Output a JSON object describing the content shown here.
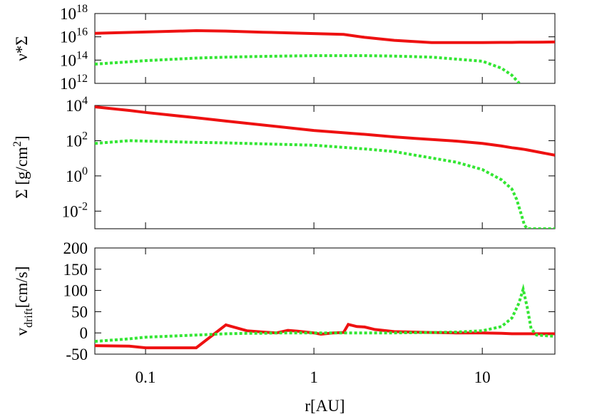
{
  "chart_data": [
    {
      "type": "line",
      "ylabel": [
        "ν*Σ"
      ],
      "ylabel_scripts": [
        "normal"
      ],
      "xlog": true,
      "ylog": true,
      "show_xtick_labels": false,
      "xlim": [
        0.05,
        27
      ],
      "xticks": [
        0.1,
        1,
        10
      ],
      "ylim": [
        1000000000000.0,
        1e+18
      ],
      "yticks": [
        {
          "value": 1e+18,
          "label": "10",
          "exponent": "18"
        },
        {
          "value": 1e+16,
          "label": "10",
          "exponent": "16"
        },
        {
          "value": 100000000000000.0,
          "label": "10",
          "exponent": "14"
        },
        {
          "value": 1000000000000.0,
          "label": "10",
          "exponent": "12"
        }
      ],
      "x": [
        0.05,
        0.1,
        0.2,
        0.3,
        0.5,
        1,
        1.5,
        2,
        3,
        5,
        10,
        13,
        15,
        16.6,
        20,
        27
      ],
      "series": [
        {
          "color": "#ee1111",
          "dashed": false,
          "values": [
            2e+16,
            2.6e+16,
            3.4e+16,
            3.1e+16,
            2.5e+16,
            1.9e+16,
            1.6e+16,
            9000000000000000.0,
            5000000000000000.0,
            3200000000000000.0,
            3200000000000000.0,
            3300000000000000.0,
            3300000000000000.0,
            3400000000000000.0,
            3400000000000000.0,
            3600000000000000.0
          ]
        },
        {
          "color": "#33e633",
          "dashed": true,
          "values": [
            45000000000000.0,
            90000000000000.0,
            150000000000000.0,
            180000000000000.0,
            210000000000000.0,
            240000000000000.0,
            240000000000000.0,
            240000000000000.0,
            220000000000000.0,
            180000000000000.0,
            80000000000000.0,
            20000000000000.0,
            5000000000000.0,
            1000000000000.0,
            null,
            null
          ]
        }
      ]
    },
    {
      "type": "line",
      "ylabel": [
        "Σ [g/cm",
        "2",
        "]"
      ],
      "ylabel_scripts": [
        "normal",
        "sup",
        "normal"
      ],
      "xlog": true,
      "ylog": true,
      "show_xtick_labels": false,
      "xlim": [
        0.05,
        27
      ],
      "xticks": [
        0.1,
        1,
        10
      ],
      "ylim": [
        0.001,
        10000
      ],
      "yticks": [
        {
          "value": 10000,
          "label": "10",
          "exponent": "4"
        },
        {
          "value": 100,
          "label": "10",
          "exponent": "2"
        },
        {
          "value": 1,
          "label": "10",
          "exponent": "0"
        },
        {
          "value": 0.01,
          "label": "10",
          "exponent": "-2"
        }
      ],
      "x": [
        0.05,
        0.08,
        0.1,
        0.2,
        0.3,
        1,
        2,
        3,
        4,
        7,
        10,
        13,
        15,
        16,
        17,
        17.8,
        18.5,
        27
      ],
      "series": [
        {
          "color": "#ee1111",
          "dashed": false,
          "values": [
            8300,
            5200,
            4000,
            2000,
            1300,
            380,
            230,
            165,
            135,
            95,
            70,
            50,
            40,
            37,
            34,
            32,
            30,
            15
          ]
        },
        {
          "color": "#33e633",
          "dashed": true,
          "values": [
            70,
            100,
            95,
            80,
            75,
            55,
            34,
            24,
            15,
            6,
            2.3,
            0.6,
            0.18,
            0.046,
            0.007,
            0.0016,
            0.001,
            0.001
          ]
        }
      ]
    },
    {
      "type": "line",
      "ylabel": [
        "v",
        "drift",
        "[cm/s]"
      ],
      "ylabel_scripts": [
        "normal",
        "sub",
        "normal"
      ],
      "xlabel": "r[AU]",
      "xlog": true,
      "ylog": false,
      "show_xtick_labels": true,
      "xlim": [
        0.05,
        27
      ],
      "xticks": [
        0.1,
        1,
        10
      ],
      "ylim": [
        -50,
        200
      ],
      "yticks": [
        -50,
        0,
        50,
        100,
        150,
        200
      ],
      "x": [
        0.05,
        0.08,
        0.1,
        0.2,
        0.3,
        0.4,
        0.5,
        0.6,
        0.7,
        0.8,
        1,
        1.1,
        1.3,
        1.5,
        1.6,
        1.8,
        2,
        2.3,
        3,
        5,
        7,
        10,
        13,
        15,
        16.5,
        17.5,
        18.5,
        19.5,
        21,
        27
      ],
      "series": [
        {
          "color": "#ee1111",
          "dashed": false,
          "values": [
            -30,
            -31,
            -35,
            -35,
            19,
            5,
            2,
            0,
            6,
            4,
            0,
            -3,
            0,
            1,
            20,
            15,
            14,
            8,
            3,
            1,
            0,
            0,
            -1,
            -2,
            -2,
            -2,
            -2,
            -2,
            -2,
            -2
          ]
        },
        {
          "color": "#33e633",
          "dashed": true,
          "values": [
            -20,
            -14,
            -10,
            -5,
            -2,
            -1,
            -1,
            0,
            0,
            0,
            0,
            0,
            0,
            0,
            0,
            0,
            0,
            0,
            0,
            1,
            2,
            5,
            15,
            35,
            70,
            103,
            60,
            10,
            -5,
            -8
          ]
        }
      ]
    }
  ]
}
